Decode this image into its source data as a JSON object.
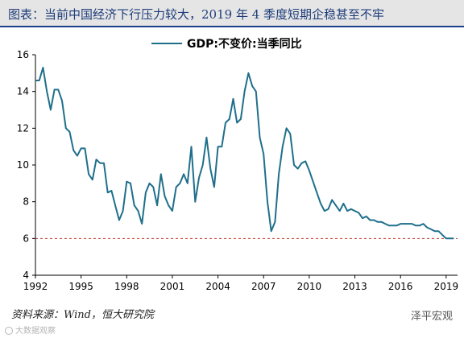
{
  "header": {
    "title": "图表：当前中国经济下行压力较大，2019 年 4 季度短期企稳甚至不牢"
  },
  "footer": {
    "source": "资料来源：Wind，恒大研究院",
    "watermark_right": "泽平宏观",
    "watermark_left": "大数据观察"
  },
  "chart_data": {
    "type": "line",
    "title": "",
    "xlabel": "",
    "ylabel": "",
    "xlim": [
      1992,
      2019.75
    ],
    "ylim": [
      4,
      16
    ],
    "yticks": [
      4,
      6,
      8,
      10,
      12,
      14,
      16
    ],
    "xticks": [
      1992,
      1995,
      1998,
      2001,
      2004,
      2007,
      2010,
      2013,
      2016,
      2019
    ],
    "grid": false,
    "legend": {
      "position": "top-center"
    },
    "reference_line": {
      "y": 6,
      "style": "dashed",
      "color": "#c0392b"
    },
    "series": [
      {
        "name": "GDP:不变价:当季同比",
        "color": "#1f6f8b",
        "x": [
          1992,
          1992.25,
          1992.5,
          1992.75,
          1993,
          1993.25,
          1993.5,
          1993.75,
          1994,
          1994.25,
          1994.5,
          1994.75,
          1995,
          1995.25,
          1995.5,
          1995.75,
          1996,
          1996.25,
          1996.5,
          1996.75,
          1997,
          1997.25,
          1997.5,
          1997.75,
          1998,
          1998.25,
          1998.5,
          1998.75,
          1999,
          1999.25,
          1999.5,
          1999.75,
          2000,
          2000.25,
          2000.5,
          2000.75,
          2001,
          2001.25,
          2001.5,
          2001.75,
          2002,
          2002.25,
          2002.5,
          2002.75,
          2003,
          2003.25,
          2003.5,
          2003.75,
          2004,
          2004.25,
          2004.5,
          2004.75,
          2005,
          2005.25,
          2005.5,
          2005.75,
          2006,
          2006.25,
          2006.5,
          2006.75,
          2007,
          2007.25,
          2007.5,
          2007.75,
          2008,
          2008.25,
          2008.5,
          2008.75,
          2009,
          2009.25,
          2009.5,
          2009.75,
          2010,
          2010.25,
          2010.5,
          2010.75,
          2011,
          2011.25,
          2011.5,
          2011.75,
          2012,
          2012.25,
          2012.5,
          2012.75,
          2013,
          2013.25,
          2013.5,
          2013.75,
          2014,
          2014.25,
          2014.5,
          2014.75,
          2015,
          2015.25,
          2015.5,
          2015.75,
          2016,
          2016.25,
          2016.5,
          2016.75,
          2017,
          2017.25,
          2017.5,
          2017.75,
          2018,
          2018.25,
          2018.5,
          2018.75,
          2019,
          2019.25,
          2019.5
        ],
        "values": [
          14.6,
          14.6,
          15.3,
          14.0,
          13.0,
          14.1,
          14.1,
          13.5,
          12.0,
          11.8,
          10.8,
          10.5,
          10.9,
          10.9,
          9.5,
          9.2,
          10.3,
          10.1,
          10.1,
          8.5,
          8.6,
          7.8,
          7.0,
          7.5,
          9.1,
          9.0,
          7.8,
          7.5,
          6.8,
          8.5,
          9.0,
          8.8,
          7.8,
          9.5,
          8.3,
          7.8,
          7.5,
          8.8,
          9.0,
          9.5,
          9.0,
          11.0,
          8.0,
          9.3,
          10.0,
          11.5,
          9.8,
          8.8,
          11.0,
          11.0,
          12.3,
          12.5,
          13.6,
          12.3,
          12.5,
          14.0,
          15.0,
          14.3,
          14.0,
          11.5,
          10.6,
          8.0,
          6.4,
          6.9,
          9.5,
          11.0,
          12.0,
          11.7,
          10.0,
          9.8,
          10.1,
          10.2,
          9.7,
          9.1,
          8.5,
          7.9,
          7.5,
          7.6,
          8.1,
          7.8,
          7.5,
          7.9,
          7.5,
          7.6,
          7.5,
          7.4,
          7.1,
          7.2,
          7.0,
          7.0,
          6.9,
          6.9,
          6.8,
          6.7,
          6.7,
          6.7,
          6.8,
          6.8,
          6.8,
          6.8,
          6.7,
          6.7,
          6.8,
          6.6,
          6.5,
          6.4,
          6.4,
          6.2,
          6.0,
          6.0,
          6.0
        ]
      }
    ]
  }
}
